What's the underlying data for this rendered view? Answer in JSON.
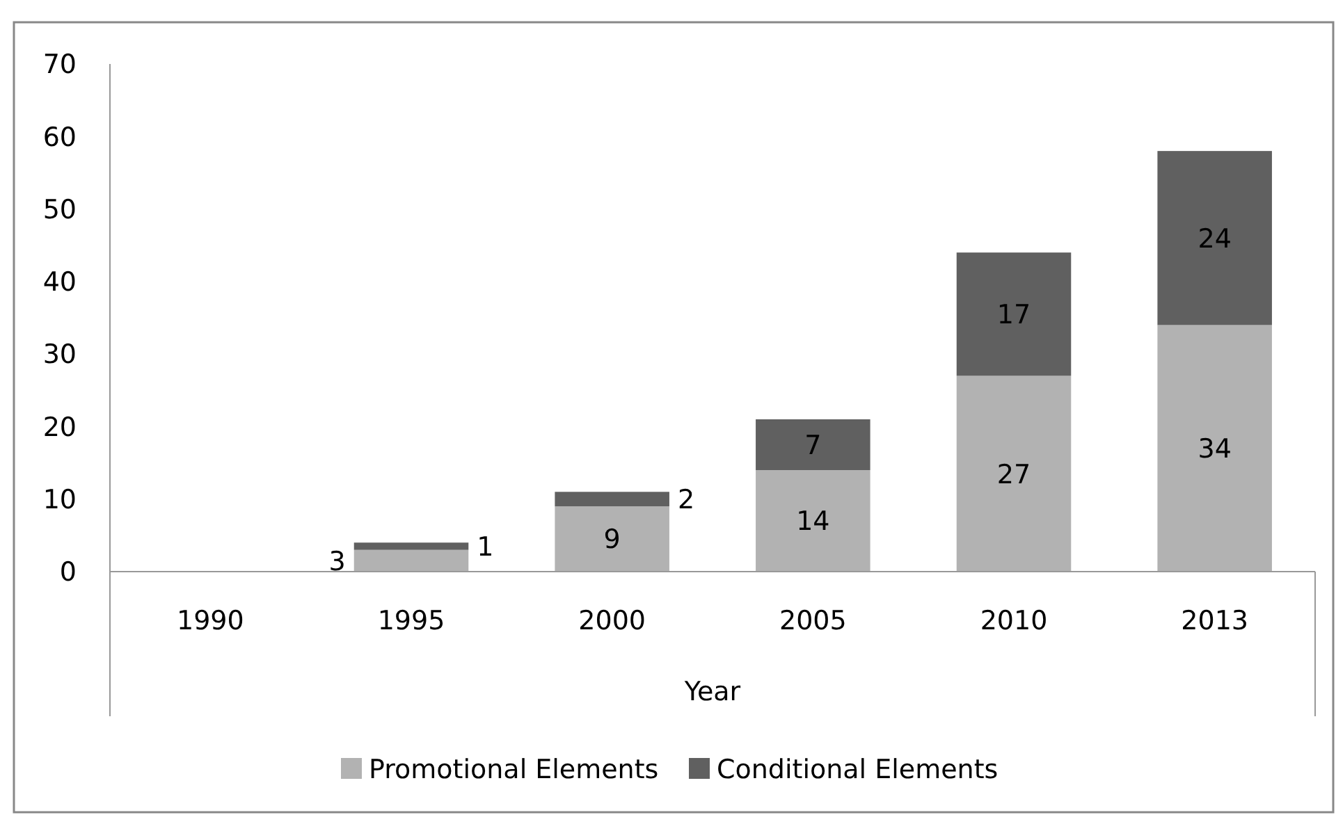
{
  "chart_data": {
    "type": "bar",
    "stacked": true,
    "xlabel": "Year",
    "categories": [
      "1990",
      "1995",
      "2000",
      "2005",
      "2010",
      "2013"
    ],
    "series": [
      {
        "name": "Promotional Elements",
        "color": "#b2b2b2",
        "values": [
          null,
          3,
          9,
          14,
          27,
          34
        ]
      },
      {
        "name": "Conditional Elements",
        "color": "#606060",
        "values": [
          null,
          1,
          2,
          7,
          17,
          24
        ]
      }
    ],
    "ylim": [
      0,
      70
    ],
    "yticks": [
      0,
      10,
      20,
      30,
      40,
      50,
      60,
      70
    ],
    "grid": false,
    "legend": "bottom",
    "data_labels": true
  }
}
